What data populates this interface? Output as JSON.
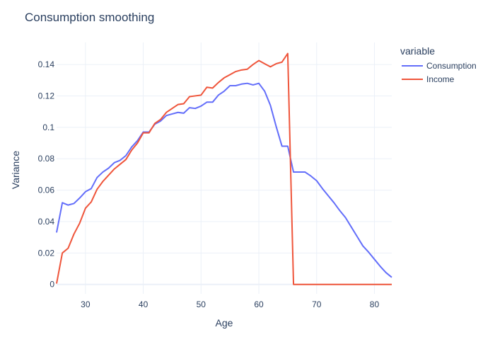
{
  "chart_data": {
    "type": "line",
    "title": "Consumption smoothing",
    "xlabel": "Age",
    "ylabel": "Variance",
    "xlim": [
      25,
      83
    ],
    "ylim": [
      -0.006,
      0.154
    ],
    "x_ticks": [
      {
        "value": 30,
        "label": "30"
      },
      {
        "value": 40,
        "label": "40"
      },
      {
        "value": 50,
        "label": "50"
      },
      {
        "value": 60,
        "label": "60"
      },
      {
        "value": 70,
        "label": "70"
      },
      {
        "value": 80,
        "label": "80"
      }
    ],
    "y_ticks": [
      {
        "value": 0,
        "label": "0"
      },
      {
        "value": 0.02,
        "label": "0.02"
      },
      {
        "value": 0.04,
        "label": "0.04"
      },
      {
        "value": 0.06,
        "label": "0.06"
      },
      {
        "value": 0.08,
        "label": "0.08"
      },
      {
        "value": 0.1,
        "label": "0.1"
      },
      {
        "value": 0.12,
        "label": "0.12"
      },
      {
        "value": 0.14,
        "label": "0.14"
      }
    ],
    "grid": true,
    "legend": {
      "title": "variable",
      "position": "top-right"
    },
    "x": [
      25,
      26,
      27,
      28,
      29,
      30,
      31,
      32,
      33,
      34,
      35,
      36,
      37,
      38,
      39,
      40,
      41,
      42,
      43,
      44,
      45,
      46,
      47,
      48,
      49,
      50,
      51,
      52,
      53,
      54,
      55,
      56,
      57,
      58,
      59,
      60,
      61,
      62,
      63,
      64,
      65,
      66,
      67,
      68,
      69,
      70,
      71,
      72,
      73,
      74,
      75,
      76,
      77,
      78,
      79,
      80,
      81,
      82,
      83
    ],
    "series": [
      {
        "name": "Consumption",
        "color": "#636efa",
        "values": [
          0.033,
          0.052,
          0.0505,
          0.0515,
          0.055,
          0.059,
          0.061,
          0.068,
          0.0715,
          0.074,
          0.0775,
          0.079,
          0.082,
          0.0875,
          0.0915,
          0.097,
          0.097,
          0.102,
          0.104,
          0.1075,
          0.1085,
          0.1095,
          0.109,
          0.1125,
          0.112,
          0.1135,
          0.116,
          0.116,
          0.1205,
          0.123,
          0.1265,
          0.1265,
          0.1275,
          0.128,
          0.127,
          0.128,
          0.123,
          0.114,
          0.1005,
          0.088,
          0.088,
          0.0715,
          0.0715,
          0.0715,
          0.069,
          0.066,
          0.061,
          0.0565,
          0.052,
          0.047,
          0.0425,
          0.0365,
          0.0305,
          0.0245,
          0.0205,
          0.016,
          0.0115,
          0.0075,
          0.0045
        ]
      },
      {
        "name": "Income",
        "color": "#ef553b",
        "values": [
          0.0005,
          0.02,
          0.023,
          0.032,
          0.039,
          0.0485,
          0.0525,
          0.0605,
          0.0655,
          0.0695,
          0.0735,
          0.0765,
          0.0795,
          0.0855,
          0.09,
          0.0965,
          0.0965,
          0.1025,
          0.105,
          0.1095,
          0.112,
          0.1145,
          0.115,
          0.1195,
          0.12,
          0.1205,
          0.1255,
          0.125,
          0.1285,
          0.1315,
          0.1335,
          0.1355,
          0.1365,
          0.137,
          0.14,
          0.1425,
          0.1405,
          0.1385,
          0.1405,
          0.1415,
          0.147,
          0.0,
          0.0,
          0.0,
          0.0,
          0.0,
          0.0,
          0.0,
          0.0,
          0.0,
          0.0,
          0.0,
          0.0,
          0.0,
          0.0,
          0.0,
          0.0,
          0.0,
          0.0
        ]
      }
    ]
  }
}
